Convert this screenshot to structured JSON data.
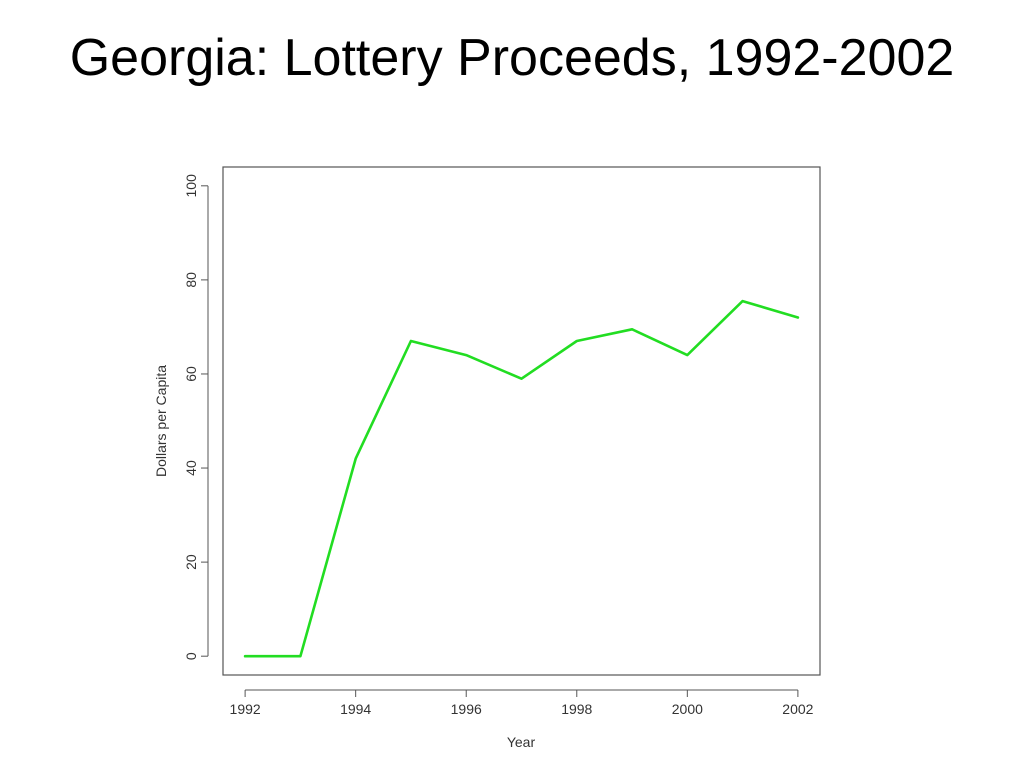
{
  "slide": {
    "title": "Georgia: Lottery Proceeds, 1992-2002"
  },
  "chart_data": {
    "type": "line",
    "title": "",
    "xlabel": "Year",
    "ylabel": "Dollars per Capita",
    "xlim": [
      1991.6,
      2002.4
    ],
    "ylim": [
      -4,
      104
    ],
    "x_ticks": [
      1992,
      1994,
      1996,
      1998,
      2000,
      2002
    ],
    "y_ticks": [
      0,
      20,
      40,
      60,
      80,
      100
    ],
    "grid": false,
    "legend": "none",
    "series": [
      {
        "color": "#22dd22",
        "x": [
          1992,
          1993,
          1994,
          1995,
          1996,
          1997,
          1998,
          1999,
          2000,
          2001,
          2002
        ],
        "y": [
          0,
          0,
          42,
          67,
          64,
          59,
          67,
          69.5,
          64,
          75.5,
          72
        ]
      }
    ]
  }
}
